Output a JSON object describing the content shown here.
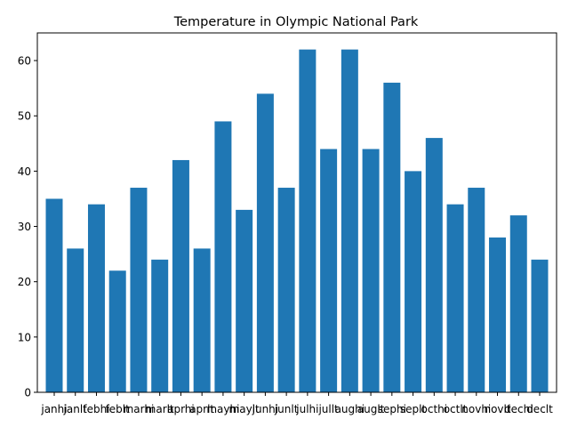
{
  "chart_data": {
    "type": "bar",
    "title": "Temperature in Olympic National Park",
    "xlabel": "",
    "ylabel": "",
    "categories": [
      "janhi",
      "janlt",
      "febhi",
      "feblt",
      "marhi",
      "marlt",
      "aprhi",
      "aprlt",
      "mayhi",
      "maylt",
      "junhi",
      "junlt",
      "julhi",
      "jullt",
      "aughi",
      "auglt",
      "sephi",
      "seplt",
      "octhi",
      "octlt",
      "novhi",
      "novlt",
      "dechi",
      "declt"
    ],
    "values": [
      35,
      26,
      34,
      22,
      37,
      24,
      42,
      26,
      49,
      33,
      54,
      37,
      62,
      44,
      62,
      44,
      56,
      40,
      46,
      34,
      37,
      28,
      32,
      24
    ],
    "ylim": [
      0,
      65
    ],
    "yticks": [
      0,
      10,
      20,
      30,
      40,
      50,
      60
    ],
    "bar_color": "#1f77b4",
    "grid": false,
    "legend": false
  }
}
